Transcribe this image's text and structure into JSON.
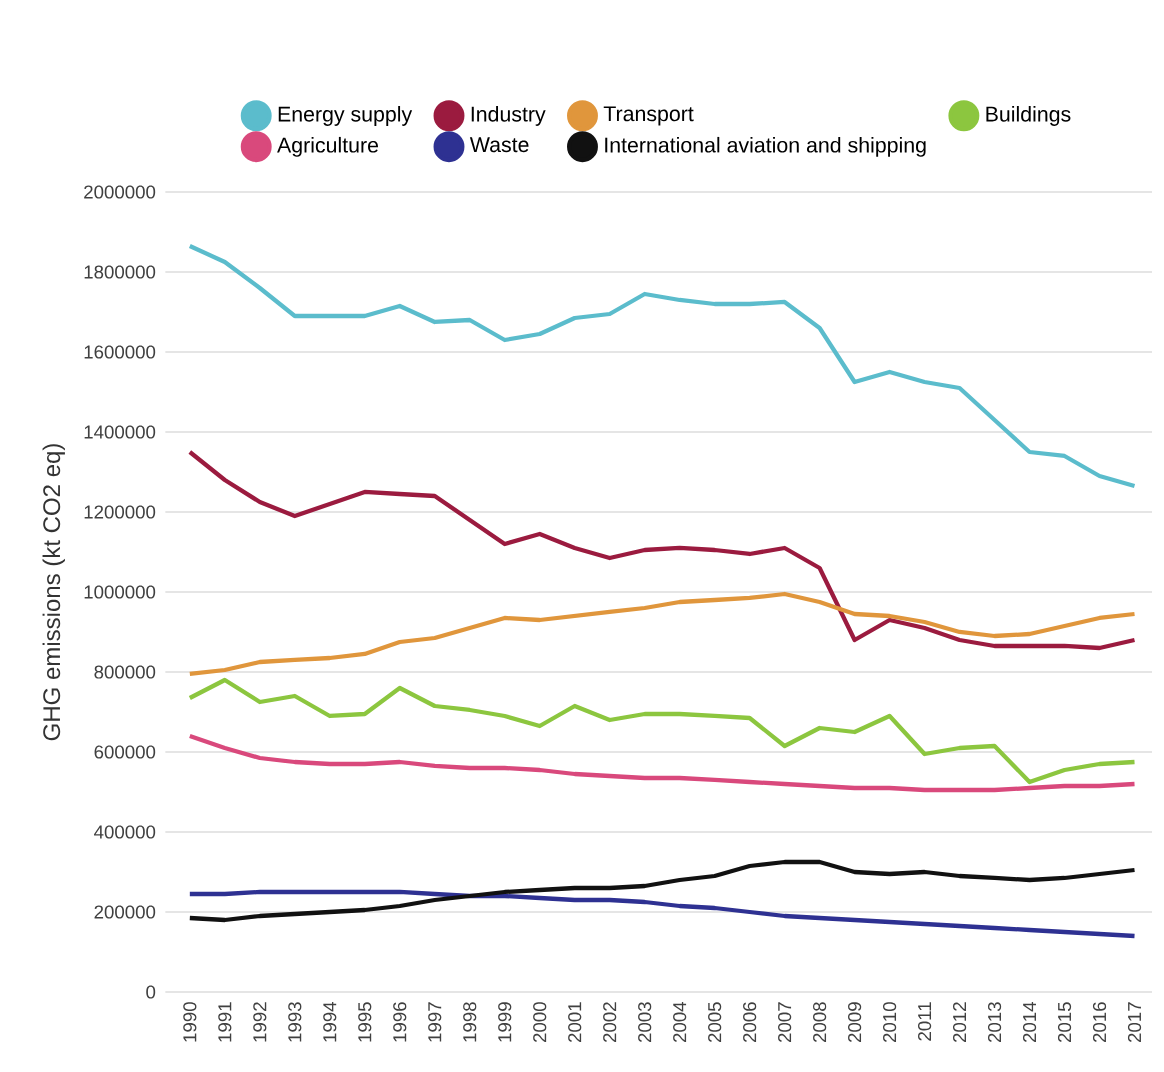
{
  "chart_data": {
    "type": "line",
    "ylabel": "GHG emissions (kt CO2 eq)",
    "categories": [
      "1990",
      "1991",
      "1992",
      "1993",
      "1994",
      "1995",
      "1996",
      "1997",
      "1998",
      "1999",
      "2000",
      "2001",
      "2002",
      "2003",
      "2004",
      "2005",
      "2006",
      "2007",
      "2008",
      "2009",
      "2010",
      "2011",
      "2012",
      "2013",
      "2014",
      "2015",
      "2016",
      "2017"
    ],
    "ylim": [
      0,
      2000000
    ],
    "yticks": [
      0,
      200000,
      400000,
      600000,
      800000,
      1000000,
      1200000,
      1400000,
      1600000,
      1800000,
      2000000
    ],
    "grid": "y",
    "legend": "top",
    "series": [
      {
        "name": "Energy supply",
        "color": "#5bbccc",
        "values": [
          1865000,
          1825000,
          1760000,
          1690000,
          1690000,
          1690000,
          1715000,
          1675000,
          1680000,
          1630000,
          1645000,
          1685000,
          1695000,
          1745000,
          1730000,
          1720000,
          1720000,
          1725000,
          1660000,
          1525000,
          1550000,
          1525000,
          1510000,
          1430000,
          1350000,
          1340000,
          1290000,
          1265000
        ]
      },
      {
        "name": "Industry",
        "color": "#9b1b3f",
        "values": [
          1350000,
          1280000,
          1225000,
          1190000,
          1220000,
          1250000,
          1245000,
          1240000,
          1180000,
          1120000,
          1145000,
          1110000,
          1085000,
          1105000,
          1110000,
          1105000,
          1095000,
          1110000,
          1060000,
          880000,
          930000,
          910000,
          880000,
          865000,
          865000,
          865000,
          860000,
          880000
        ]
      },
      {
        "name": "Transport",
        "color": "#e0963c",
        "values": [
          795000,
          805000,
          825000,
          830000,
          835000,
          845000,
          875000,
          885000,
          910000,
          935000,
          930000,
          940000,
          950000,
          960000,
          975000,
          980000,
          985000,
          995000,
          975000,
          945000,
          940000,
          925000,
          900000,
          890000,
          895000,
          915000,
          935000,
          945000
        ]
      },
      {
        "name": "Buildings",
        "color": "#8cc63f",
        "values": [
          735000,
          780000,
          725000,
          740000,
          690000,
          695000,
          760000,
          715000,
          705000,
          690000,
          665000,
          715000,
          680000,
          695000,
          695000,
          690000,
          685000,
          615000,
          660000,
          650000,
          690000,
          595000,
          610000,
          615000,
          525000,
          555000,
          570000,
          575000
        ]
      },
      {
        "name": "Agriculture",
        "color": "#d9497c",
        "values": [
          640000,
          610000,
          585000,
          575000,
          570000,
          570000,
          575000,
          565000,
          560000,
          560000,
          555000,
          545000,
          540000,
          535000,
          535000,
          530000,
          525000,
          520000,
          515000,
          510000,
          510000,
          505000,
          505000,
          505000,
          510000,
          515000,
          515000,
          520000
        ]
      },
      {
        "name": "Waste",
        "color": "#2e3192",
        "values": [
          245000,
          245000,
          250000,
          250000,
          250000,
          250000,
          250000,
          245000,
          240000,
          240000,
          235000,
          230000,
          230000,
          225000,
          215000,
          210000,
          200000,
          190000,
          185000,
          180000,
          175000,
          170000,
          165000,
          160000,
          155000,
          150000,
          145000,
          140000
        ]
      },
      {
        "name": "International aviation and shipping",
        "color": "#111111",
        "values": [
          185000,
          180000,
          190000,
          195000,
          200000,
          205000,
          215000,
          230000,
          240000,
          250000,
          255000,
          260000,
          260000,
          265000,
          280000,
          290000,
          315000,
          325000,
          325000,
          300000,
          295000,
          300000,
          290000,
          285000,
          280000,
          285000,
          295000,
          305000
        ]
      }
    ]
  }
}
